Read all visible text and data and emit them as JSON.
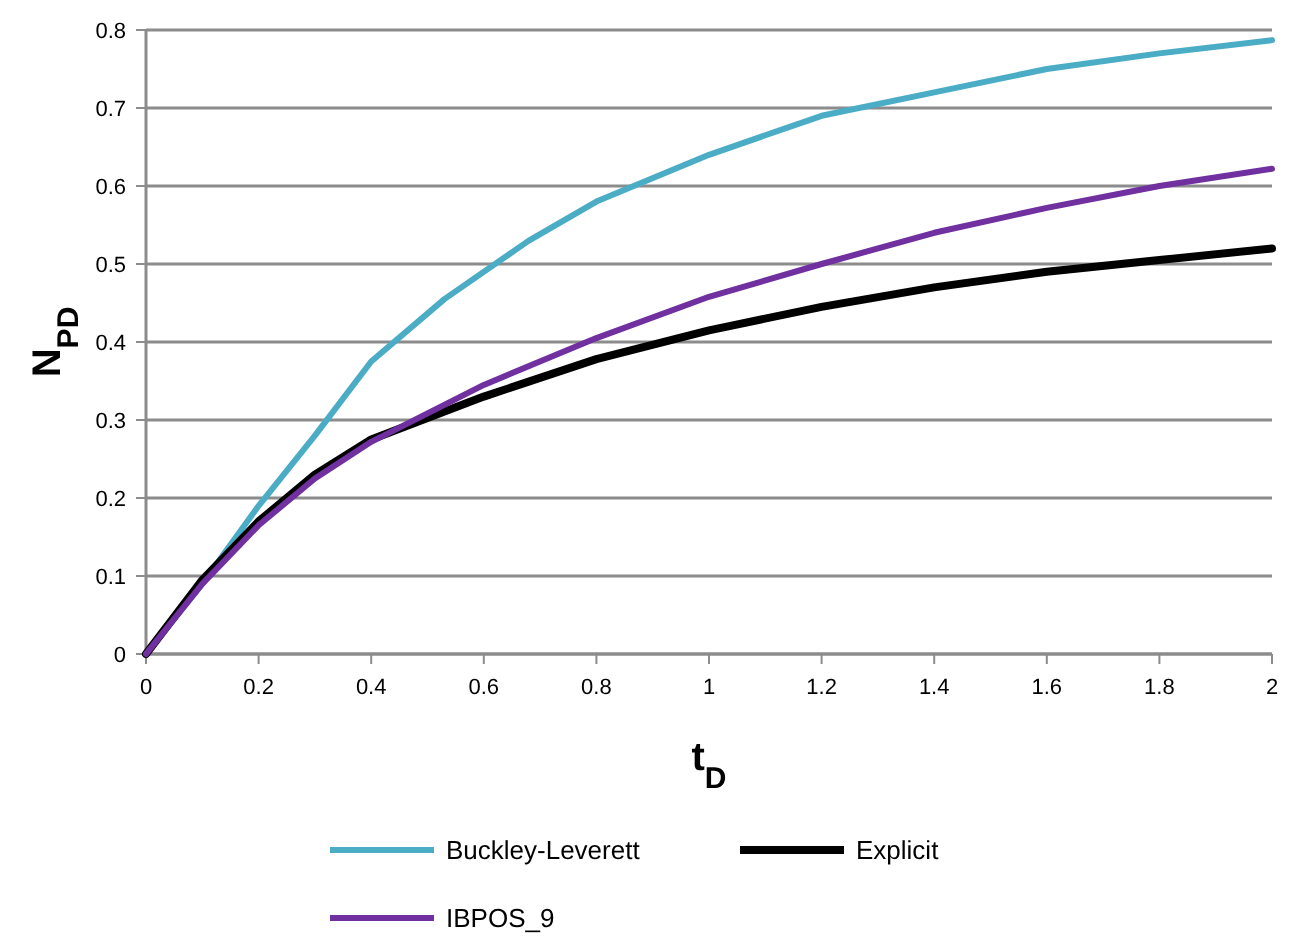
{
  "chart_data": {
    "type": "line",
    "xlabel": "t$_{D}$",
    "ylabel": "N$_{PD}$",
    "xlim": [
      0,
      2
    ],
    "xticks": [
      0,
      0.2,
      0.4,
      0.6,
      0.8,
      1,
      1.2,
      1.4,
      1.6,
      1.8,
      2
    ],
    "ylim": [
      0,
      0.8
    ],
    "yticks": [
      0,
      0.1,
      0.2,
      0.3,
      0.4,
      0.5,
      0.6,
      0.7,
      0.8
    ],
    "grid": "y",
    "legend": "bottom",
    "marker": "none",
    "series": [
      {
        "name": "Buckley-Leverett",
        "color": "#4bacc6",
        "x": [
          0,
          0.1,
          0.2,
          0.3,
          0.4,
          0.53,
          0.68,
          0.8,
          1.0,
          1.2,
          1.4,
          1.6,
          1.8,
          2
        ],
        "values": [
          0,
          0.09,
          0.19,
          0.28,
          0.375,
          0.455,
          0.53,
          0.58,
          0.64,
          0.69,
          0.72,
          0.75,
          0.77,
          0.787
        ]
      },
      {
        "name": "Explicit",
        "color": "#000000",
        "x": [
          0,
          0.1,
          0.2,
          0.3,
          0.4,
          0.6,
          0.8,
          1.0,
          1.2,
          1.4,
          1.6,
          1.8,
          2
        ],
        "values": [
          0,
          0.095,
          0.17,
          0.23,
          0.275,
          0.33,
          0.378,
          0.415,
          0.445,
          0.47,
          0.49,
          0.505,
          0.52
        ]
      },
      {
        "name": "IBPOS_9",
        "color": "#7030a0",
        "x": [
          0,
          0.1,
          0.2,
          0.3,
          0.4,
          0.6,
          0.8,
          1.0,
          1.2,
          1.4,
          1.6,
          1.8,
          2
        ],
        "values": [
          0,
          0.09,
          0.165,
          0.225,
          0.272,
          0.345,
          0.405,
          0.458,
          0.5,
          0.54,
          0.572,
          0.6,
          0.622
        ]
      }
    ]
  }
}
